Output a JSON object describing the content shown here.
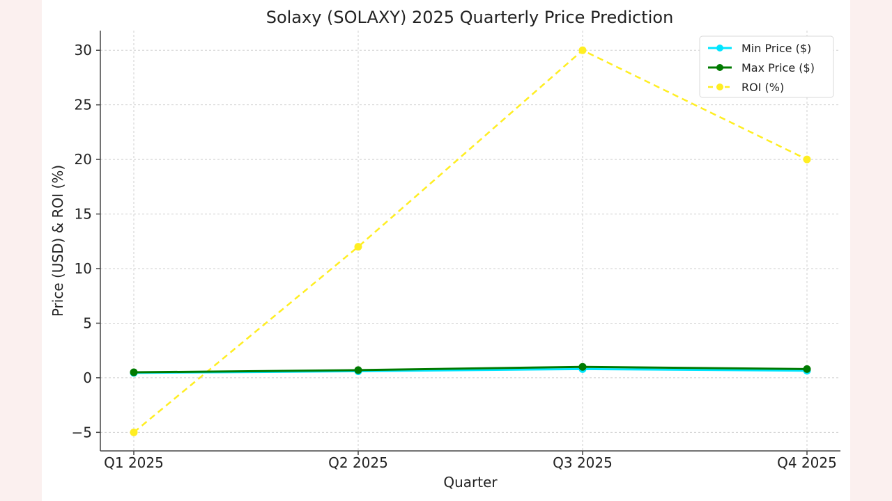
{
  "chart_data": {
    "type": "line",
    "title": "Solaxy (SOLAXY) 2025 Quarterly Price Prediction",
    "xlabel": "Quarter",
    "ylabel": "Price (USD) & ROI (%)",
    "categories": [
      "Q1 2025",
      "Q2 2025",
      "Q3 2025",
      "Q4 2025"
    ],
    "ylim": [
      -6.7,
      31.8
    ],
    "yticks": [
      -5,
      0,
      5,
      10,
      15,
      20,
      25,
      30
    ],
    "ytick_labels": [
      "−5",
      "0",
      "5",
      "10",
      "15",
      "20",
      "25",
      "30"
    ],
    "grid": true,
    "legend_position": "top-right",
    "series": [
      {
        "name": "Min Price ($)",
        "values": [
          0.45,
          0.6,
          0.8,
          0.65
        ],
        "color": "#00e5ff",
        "dash": "solid",
        "marker": "circle"
      },
      {
        "name": "Max Price ($)",
        "values": [
          0.5,
          0.7,
          1.0,
          0.8
        ],
        "color": "#007a00",
        "dash": "solid",
        "marker": "circle"
      },
      {
        "name": "ROI (%)",
        "values": [
          -5,
          12,
          30,
          20
        ],
        "color": "#ffee22",
        "dash": "dashed",
        "marker": "circle"
      }
    ]
  }
}
